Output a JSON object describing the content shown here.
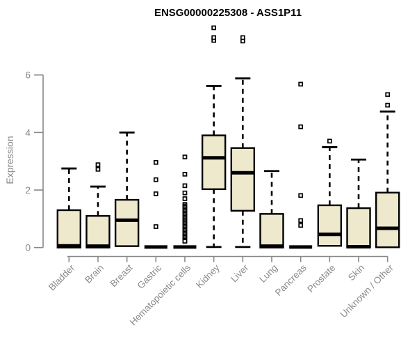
{
  "chart_data": {
    "type": "boxplot",
    "title": "ENSG00000225308 - ASS1P11",
    "ylabel": "Expression",
    "ylim": [
      0,
      6
    ],
    "yticks": [
      0,
      2,
      4,
      6
    ],
    "grid": false,
    "legend": "none",
    "categories": [
      "Bladder",
      "Brain",
      "Breast",
      "Gastric",
      "Hematopoietic cells",
      "Kidney",
      "Liver",
      "Lung",
      "Pancreas",
      "Prostate",
      "Skin",
      "Unknown / Other"
    ],
    "series": [
      {
        "name": "Bladder",
        "low": 0,
        "q1": 0,
        "median": 0.06,
        "q3": 1.3,
        "high": 2.75,
        "outliers": []
      },
      {
        "name": "Brain",
        "low": 0,
        "q1": 0,
        "median": 0.05,
        "q3": 1.1,
        "high": 2.12,
        "outliers": [
          2.72,
          2.88
        ]
      },
      {
        "name": "Breast",
        "low": 0.05,
        "q1": 0.05,
        "median": 0.95,
        "q3": 1.66,
        "high": 4.0,
        "outliers": []
      },
      {
        "name": "Gastric",
        "low": 0.02,
        "q1": 0.02,
        "median": 0.02,
        "q3": 0.02,
        "high": 0.02,
        "outliers": [
          2.96,
          2.36,
          1.87,
          0.73
        ]
      },
      {
        "name": "Hematopoietic cells",
        "low": 0.02,
        "q1": 0.02,
        "median": 0.02,
        "q3": 0.02,
        "high": 0.02,
        "outliers": [
          3.15,
          2.55,
          2.15,
          1.9,
          1.7,
          1.5,
          1.45,
          1.4,
          1.35,
          1.3,
          1.25,
          1.2,
          1.15,
          1.1,
          1.05,
          1.0,
          0.95,
          0.9,
          0.85,
          0.8,
          0.75,
          0.7,
          0.65,
          0.6,
          0.55,
          0.5,
          0.45,
          0.4,
          0.35,
          0.3,
          0.25,
          0.22
        ]
      },
      {
        "name": "Kidney",
        "low": 0.02,
        "q1": 2.03,
        "median": 3.12,
        "q3": 3.9,
        "high": 5.62,
        "outliers": [
          7.2,
          7.3,
          7.64
        ]
      },
      {
        "name": "Liver",
        "low": 0.02,
        "q1": 1.28,
        "median": 2.6,
        "q3": 3.46,
        "high": 5.88,
        "outliers": [
          7.18,
          7.3
        ]
      },
      {
        "name": "Lung",
        "low": 0,
        "q1": 0,
        "median": 0.05,
        "q3": 1.17,
        "high": 2.66,
        "outliers": []
      },
      {
        "name": "Pancreas",
        "low": 0.02,
        "q1": 0.02,
        "median": 0.02,
        "q3": 0.02,
        "high": 0.02,
        "outliers": [
          5.68,
          4.2,
          1.81,
          0.94,
          0.77
        ]
      },
      {
        "name": "Prostate",
        "low": 0.06,
        "q1": 0.06,
        "median": 0.46,
        "q3": 1.47,
        "high": 3.49,
        "outliers": [
          3.7
        ]
      },
      {
        "name": "Skin",
        "low": 0,
        "q1": 0,
        "median": 0.03,
        "q3": 1.37,
        "high": 3.06,
        "outliers": []
      },
      {
        "name": "Unknown / Other",
        "low": 0.01,
        "q1": 0.01,
        "median": 0.67,
        "q3": 1.91,
        "high": 4.73,
        "outliers": [
          4.95,
          5.32
        ]
      }
    ],
    "colors": {
      "box_fill": "#EEE8CD",
      "box_line": "#000000",
      "axis": "#888888",
      "tick_text": "#8a8a8a",
      "title_text": "#000000"
    }
  }
}
